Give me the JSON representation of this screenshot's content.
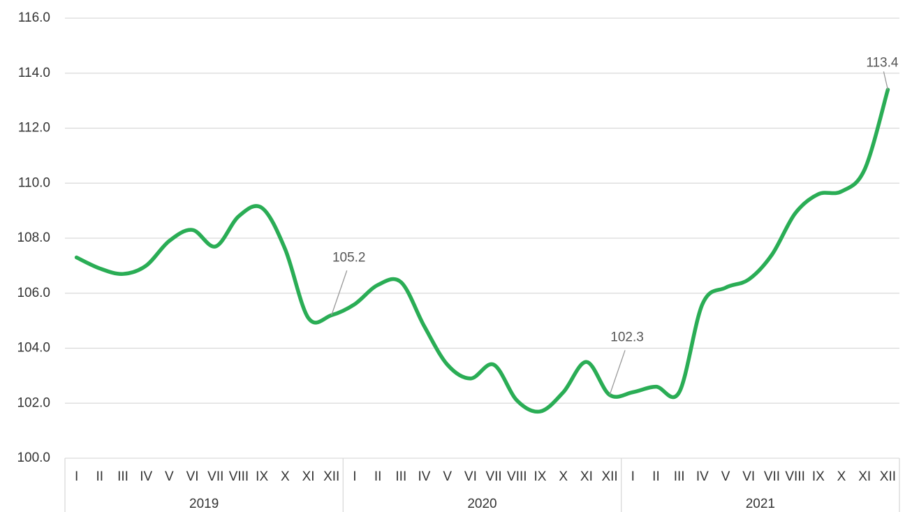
{
  "chart_data": {
    "type": "line",
    "categories": [
      "I",
      "II",
      "III",
      "IV",
      "V",
      "VI",
      "VII",
      "VIII",
      "IX",
      "X",
      "XI",
      "XII",
      "I",
      "II",
      "III",
      "IV",
      "V",
      "VI",
      "VII",
      "VIII",
      "IX",
      "X",
      "XI",
      "XII",
      "I",
      "II",
      "III",
      "IV",
      "V",
      "VI",
      "VII",
      "VIII",
      "IX",
      "X",
      "XI",
      "XII"
    ],
    "x_groups": [
      "2019",
      "2020",
      "2021"
    ],
    "series": [
      {
        "color": "#2aad55",
        "values": [
          107.3,
          106.9,
          106.7,
          107.0,
          107.9,
          108.3,
          107.7,
          108.8,
          109.1,
          107.6,
          105.1,
          105.2,
          105.6,
          106.3,
          106.4,
          104.8,
          103.4,
          102.9,
          103.4,
          102.1,
          101.7,
          102.4,
          103.5,
          102.3,
          102.4,
          102.6,
          102.4,
          105.6,
          106.2,
          106.5,
          107.4,
          108.9,
          109.6,
          109.7,
          110.5,
          113.4
        ],
        "value_labels": [
          null,
          null,
          null,
          null,
          null,
          null,
          null,
          null,
          null,
          null,
          null,
          "105.2",
          null,
          null,
          null,
          null,
          null,
          null,
          null,
          null,
          null,
          null,
          null,
          "102.3",
          null,
          null,
          null,
          null,
          null,
          null,
          null,
          null,
          null,
          null,
          null,
          "113.4"
        ]
      }
    ],
    "ylim": [
      100,
      116
    ],
    "yticks": [
      {
        "value": 100,
        "label": "100.0"
      },
      {
        "value": 102,
        "label": "102.0"
      },
      {
        "value": 104,
        "label": "104.0"
      },
      {
        "value": 106,
        "label": "106.0"
      },
      {
        "value": 108,
        "label": "108.0"
      },
      {
        "value": 110,
        "label": "110.0"
      },
      {
        "value": 112,
        "label": "112.0"
      },
      {
        "value": 114,
        "label": "114.0"
      },
      {
        "value": 116,
        "label": "116.0"
      }
    ],
    "grid": true
  }
}
